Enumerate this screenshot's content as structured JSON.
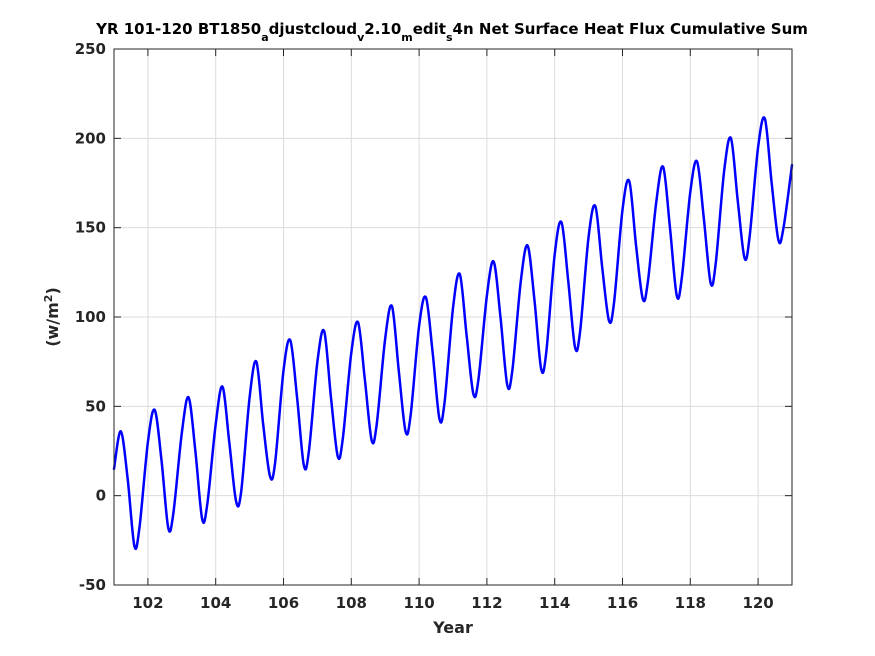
{
  "chart_data": {
    "type": "line",
    "title_parts": [
      {
        "text": "YR 101-120 BT1850",
        "shift": "base"
      },
      {
        "text": "a",
        "shift": "sub"
      },
      {
        "text": "djustcloud",
        "shift": "base"
      },
      {
        "text": "v",
        "shift": "sub"
      },
      {
        "text": "2.10",
        "shift": "base"
      },
      {
        "text": "m",
        "shift": "sub"
      },
      {
        "text": "edit",
        "shift": "base"
      },
      {
        "text": "s",
        "shift": "sub"
      },
      {
        "text": "4n Net Surface Heat Flux  Cumulative Sum",
        "shift": "base"
      }
    ],
    "xlabel": "Year",
    "ylabel_parts": [
      {
        "text": "(w/m",
        "shift": "base"
      },
      {
        "text": "2",
        "shift": "super"
      },
      {
        "text": ")",
        "shift": "base"
      }
    ],
    "xlim": [
      101,
      121
    ],
    "ylim": [
      -50,
      250
    ],
    "xticks": [
      102,
      104,
      106,
      108,
      110,
      112,
      114,
      116,
      118,
      120
    ],
    "yticks": [
      -50,
      0,
      50,
      100,
      150,
      200,
      250
    ],
    "grid": true,
    "series": [
      {
        "color": "#0000ff",
        "x": [
          101.0,
          101.2,
          101.4,
          101.6,
          101.75,
          102.0,
          102.2,
          102.4,
          102.6,
          102.75,
          103.0,
          103.2,
          103.4,
          103.6,
          103.75,
          104.0,
          104.2,
          104.4,
          104.6,
          104.75,
          105.0,
          105.2,
          105.4,
          105.6,
          105.75,
          106.0,
          106.2,
          106.4,
          106.6,
          106.75,
          107.0,
          107.2,
          107.4,
          107.6,
          107.75,
          108.0,
          108.2,
          108.4,
          108.6,
          108.75,
          109.0,
          109.2,
          109.4,
          109.6,
          109.75,
          110.0,
          110.2,
          110.4,
          110.6,
          110.75,
          111.0,
          111.2,
          111.4,
          111.6,
          111.75,
          112.0,
          112.2,
          112.4,
          112.6,
          112.75,
          113.0,
          113.2,
          113.4,
          113.6,
          113.75,
          114.0,
          114.2,
          114.4,
          114.6,
          114.75,
          115.0,
          115.2,
          115.4,
          115.6,
          115.75,
          116.0,
          116.2,
          116.4,
          116.6,
          116.75,
          117.0,
          117.2,
          117.4,
          117.6,
          117.75,
          118.0,
          118.2,
          118.4,
          118.6,
          118.75,
          119.0,
          119.2,
          119.4,
          119.6,
          119.75,
          120.0,
          120.2,
          120.4,
          120.6,
          120.75,
          121.0
        ],
        "y": [
          15,
          36,
          10,
          -28,
          -18,
          30,
          48,
          20,
          -18,
          -10,
          35,
          55,
          25,
          -13,
          -5,
          40,
          61,
          30,
          -3,
          2,
          55,
          75,
          40,
          11,
          18,
          70,
          87,
          55,
          17,
          25,
          75,
          92,
          55,
          22,
          32,
          80,
          97,
          65,
          31,
          40,
          88,
          106,
          70,
          36,
          45,
          95,
          111,
          80,
          43,
          52,
          105,
          124,
          90,
          57,
          65,
          112,
          131,
          100,
          62,
          70,
          120,
          140,
          110,
          71,
          80,
          135,
          153,
          120,
          83,
          92,
          145,
          162,
          128,
          98,
          108,
          160,
          176,
          140,
          110,
          120,
          165,
          184,
          150,
          112,
          122,
          170,
          187,
          155,
          119,
          130,
          182,
          200,
          165,
          133,
          145,
          195,
          211,
          175,
          143,
          150,
          185
        ]
      }
    ]
  }
}
